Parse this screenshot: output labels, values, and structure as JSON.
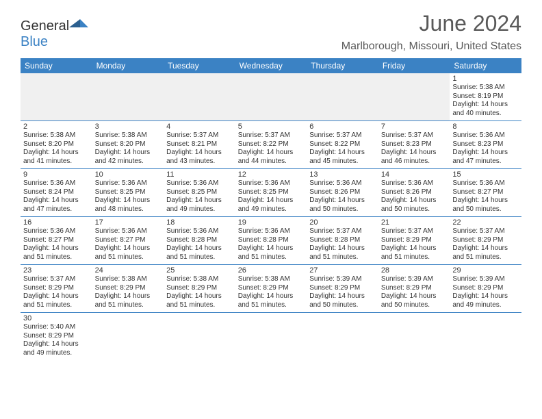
{
  "logo": {
    "text1": "General",
    "text2": "Blue",
    "color1": "#333333",
    "color2": "#3b82c4"
  },
  "title": "June 2024",
  "location": "Marlborough, Missouri, United States",
  "colors": {
    "header_bg": "#3b82c4",
    "header_fg": "#ffffff",
    "blank_bg": "#f0f0f0",
    "border": "#3b82c4",
    "title_color": "#595959"
  },
  "fonts": {
    "title_size": 32,
    "location_size": 16,
    "dayhead_size": 12,
    "cell_size": 10
  },
  "day_headers": [
    "Sunday",
    "Monday",
    "Tuesday",
    "Wednesday",
    "Thursday",
    "Friday",
    "Saturday"
  ],
  "weeks": [
    [
      null,
      null,
      null,
      null,
      null,
      null,
      {
        "n": "1",
        "sr": "5:38 AM",
        "ss": "8:19 PM",
        "dl": "14 hours and 40 minutes."
      }
    ],
    [
      {
        "n": "2",
        "sr": "5:38 AM",
        "ss": "8:20 PM",
        "dl": "14 hours and 41 minutes."
      },
      {
        "n": "3",
        "sr": "5:38 AM",
        "ss": "8:20 PM",
        "dl": "14 hours and 42 minutes."
      },
      {
        "n": "4",
        "sr": "5:37 AM",
        "ss": "8:21 PM",
        "dl": "14 hours and 43 minutes."
      },
      {
        "n": "5",
        "sr": "5:37 AM",
        "ss": "8:22 PM",
        "dl": "14 hours and 44 minutes."
      },
      {
        "n": "6",
        "sr": "5:37 AM",
        "ss": "8:22 PM",
        "dl": "14 hours and 45 minutes."
      },
      {
        "n": "7",
        "sr": "5:37 AM",
        "ss": "8:23 PM",
        "dl": "14 hours and 46 minutes."
      },
      {
        "n": "8",
        "sr": "5:36 AM",
        "ss": "8:23 PM",
        "dl": "14 hours and 47 minutes."
      }
    ],
    [
      {
        "n": "9",
        "sr": "5:36 AM",
        "ss": "8:24 PM",
        "dl": "14 hours and 47 minutes."
      },
      {
        "n": "10",
        "sr": "5:36 AM",
        "ss": "8:25 PM",
        "dl": "14 hours and 48 minutes."
      },
      {
        "n": "11",
        "sr": "5:36 AM",
        "ss": "8:25 PM",
        "dl": "14 hours and 49 minutes."
      },
      {
        "n": "12",
        "sr": "5:36 AM",
        "ss": "8:25 PM",
        "dl": "14 hours and 49 minutes."
      },
      {
        "n": "13",
        "sr": "5:36 AM",
        "ss": "8:26 PM",
        "dl": "14 hours and 50 minutes."
      },
      {
        "n": "14",
        "sr": "5:36 AM",
        "ss": "8:26 PM",
        "dl": "14 hours and 50 minutes."
      },
      {
        "n": "15",
        "sr": "5:36 AM",
        "ss": "8:27 PM",
        "dl": "14 hours and 50 minutes."
      }
    ],
    [
      {
        "n": "16",
        "sr": "5:36 AM",
        "ss": "8:27 PM",
        "dl": "14 hours and 51 minutes."
      },
      {
        "n": "17",
        "sr": "5:36 AM",
        "ss": "8:27 PM",
        "dl": "14 hours and 51 minutes."
      },
      {
        "n": "18",
        "sr": "5:36 AM",
        "ss": "8:28 PM",
        "dl": "14 hours and 51 minutes."
      },
      {
        "n": "19",
        "sr": "5:36 AM",
        "ss": "8:28 PM",
        "dl": "14 hours and 51 minutes."
      },
      {
        "n": "20",
        "sr": "5:37 AM",
        "ss": "8:28 PM",
        "dl": "14 hours and 51 minutes."
      },
      {
        "n": "21",
        "sr": "5:37 AM",
        "ss": "8:29 PM",
        "dl": "14 hours and 51 minutes."
      },
      {
        "n": "22",
        "sr": "5:37 AM",
        "ss": "8:29 PM",
        "dl": "14 hours and 51 minutes."
      }
    ],
    [
      {
        "n": "23",
        "sr": "5:37 AM",
        "ss": "8:29 PM",
        "dl": "14 hours and 51 minutes."
      },
      {
        "n": "24",
        "sr": "5:38 AM",
        "ss": "8:29 PM",
        "dl": "14 hours and 51 minutes."
      },
      {
        "n": "25",
        "sr": "5:38 AM",
        "ss": "8:29 PM",
        "dl": "14 hours and 51 minutes."
      },
      {
        "n": "26",
        "sr": "5:38 AM",
        "ss": "8:29 PM",
        "dl": "14 hours and 51 minutes."
      },
      {
        "n": "27",
        "sr": "5:39 AM",
        "ss": "8:29 PM",
        "dl": "14 hours and 50 minutes."
      },
      {
        "n": "28",
        "sr": "5:39 AM",
        "ss": "8:29 PM",
        "dl": "14 hours and 50 minutes."
      },
      {
        "n": "29",
        "sr": "5:39 AM",
        "ss": "8:29 PM",
        "dl": "14 hours and 49 minutes."
      }
    ],
    [
      {
        "n": "30",
        "sr": "5:40 AM",
        "ss": "8:29 PM",
        "dl": "14 hours and 49 minutes."
      },
      null,
      null,
      null,
      null,
      null,
      null
    ]
  ],
  "labels": {
    "sunrise": "Sunrise: ",
    "sunset": "Sunset: ",
    "daylight": "Daylight: "
  }
}
